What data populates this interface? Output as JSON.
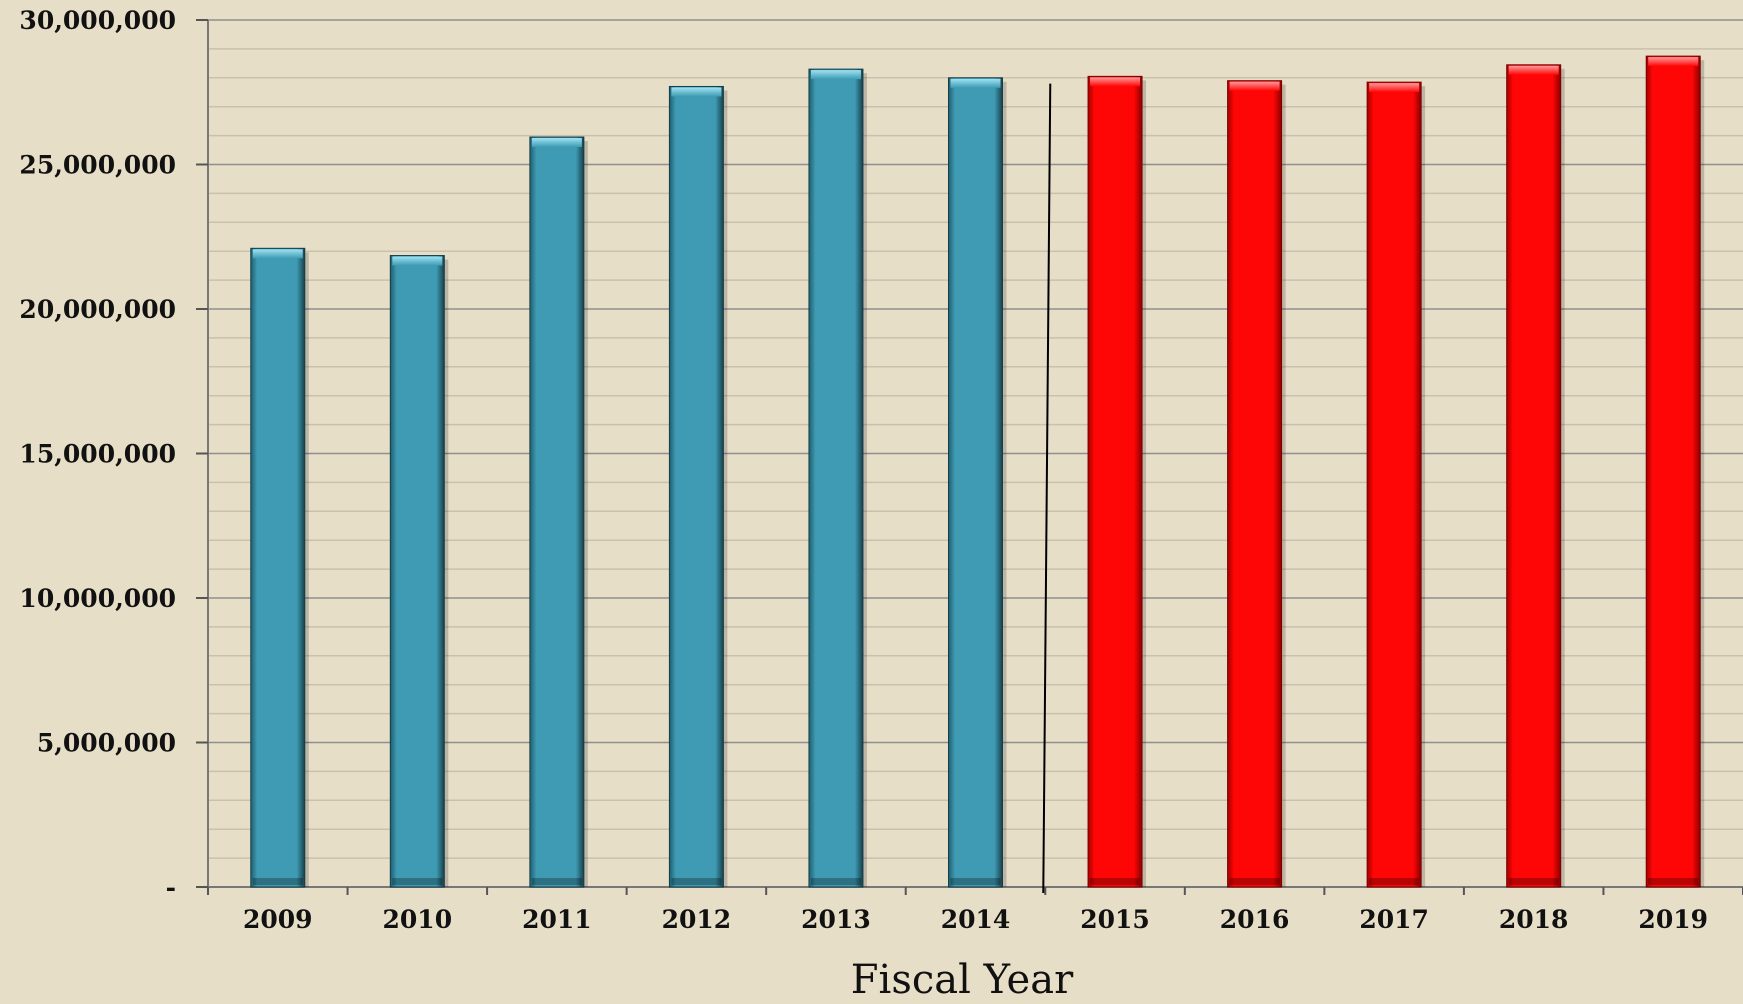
{
  "chart_data": {
    "type": "bar",
    "categories": [
      "2009",
      "2010",
      "2011",
      "2012",
      "2013",
      "2014",
      "2015",
      "2016",
      "2017",
      "2018",
      "2019"
    ],
    "values": [
      22100000,
      21850000,
      25950000,
      27700000,
      28300000,
      28000000,
      28050000,
      27900000,
      27850000,
      28450000,
      28750000
    ],
    "bar_colors": [
      "#3e9bb3",
      "#3e9bb3",
      "#3e9bb3",
      "#3e9bb3",
      "#3e9bb3",
      "#3e9bb3",
      "#ff0000",
      "#ff0000",
      "#ff0000",
      "#ff0000",
      "#ff0000"
    ],
    "colors": {
      "actual": "#3e9bb3",
      "projected": "#ff0000",
      "background": "#e7dec8",
      "major_grid": "#8f8f8f",
      "minor_grid": "#c9c1ad"
    },
    "xlabel": "Fiscal Year",
    "ylabel": "",
    "ylim": [
      0,
      30000000
    ],
    "yticks": [
      0,
      5000000,
      10000000,
      15000000,
      20000000,
      25000000,
      30000000
    ],
    "ytick_labels": [
      "-",
      "5,000,000",
      "10,000,000",
      "15,000,000",
      "20,000,000",
      "25,000,000",
      "30,000,000"
    ],
    "grid": true,
    "divider_between": [
      "2014",
      "2015"
    ]
  }
}
